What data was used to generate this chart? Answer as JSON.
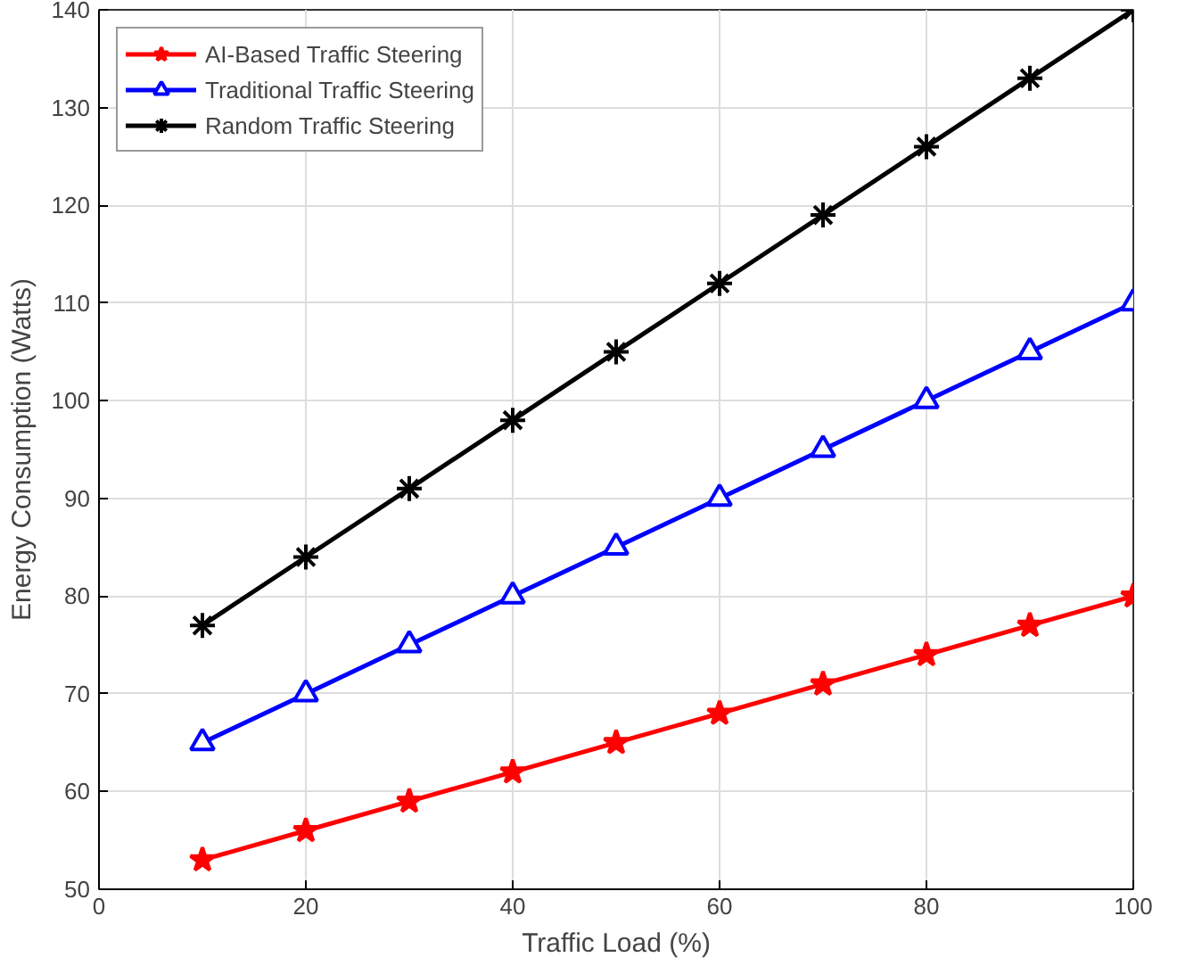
{
  "chart_data": {
    "type": "line",
    "xlabel": "Traffic Load (%)",
    "ylabel": "Energy Consumption (Watts)",
    "x": [
      10,
      20,
      30,
      40,
      50,
      60,
      70,
      80,
      90,
      100
    ],
    "series": [
      {
        "name": "AI-Based Traffic Steering",
        "color": "#ff0000",
        "marker": "star",
        "values": [
          53,
          56,
          59,
          62,
          65,
          68,
          71,
          74,
          77,
          80
        ]
      },
      {
        "name": "Traditional Traffic Steering",
        "color": "#0000ff",
        "marker": "triangle",
        "values": [
          65,
          70,
          75,
          80,
          85,
          90,
          95,
          100,
          105,
          110
        ]
      },
      {
        "name": "Random Traffic Steering",
        "color": "#000000",
        "marker": "cross",
        "values": [
          77,
          84,
          91,
          98,
          105,
          112,
          119,
          126,
          133,
          140
        ]
      }
    ],
    "xlim": [
      0,
      100
    ],
    "ylim": [
      50,
      140
    ],
    "xticks": [
      0,
      20,
      40,
      60,
      80,
      100
    ],
    "yticks": [
      50,
      60,
      70,
      80,
      90,
      100,
      110,
      120,
      130,
      140
    ],
    "grid": true,
    "legend": "top left",
    "line_style": "solid"
  }
}
